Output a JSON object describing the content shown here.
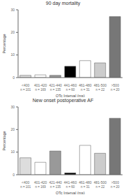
{
  "chart_data": [
    {
      "type": "bar",
      "title": "90 day mortality",
      "categories": [
        "<400",
        "401-420",
        "421-440",
        "441-460",
        "461-480",
        "481-500",
        ">500"
      ],
      "values": [
        1.0,
        1.2,
        1.0,
        5.0,
        7.5,
        6.5,
        27.0
      ],
      "annotations": [
        "n = 101",
        "n = 169",
        "n = 135",
        "n = 60",
        "n = 31",
        "n = 22",
        "n = 20"
      ],
      "colors": [
        "#dddddd",
        "#ffffff",
        "#999999",
        "#000000",
        "#ffffff",
        "#cccccc",
        "#777777"
      ],
      "xlabel": "QTc Interval (ms)",
      "ylabel": "Percentage",
      "ylim": [
        0,
        30
      ],
      "yticks": [
        0,
        10,
        20,
        30
      ],
      "grid": false
    },
    {
      "type": "bar",
      "title": "New onset postoperative AF",
      "categories": [
        "<400",
        "401-420",
        "421-440",
        "441-460",
        "461-480",
        "481-500",
        ">500"
      ],
      "values": [
        7.5,
        5.5,
        10.5,
        0.8,
        13.0,
        9.5,
        25.0
      ],
      "annotations": [
        "n = 101",
        "n = 169",
        "n = 135",
        "n = 60",
        "n = 31",
        "n = 22",
        "n = 20"
      ],
      "colors": [
        "#dddddd",
        "#ffffff",
        "#999999",
        "#000000",
        "#ffffff",
        "#cccccc",
        "#777777"
      ],
      "xlabel": "QTc Interval (ms)",
      "ylabel": "Percentage",
      "ylim": [
        0,
        30
      ],
      "yticks": [
        0,
        10,
        20,
        30
      ],
      "grid": false
    }
  ]
}
